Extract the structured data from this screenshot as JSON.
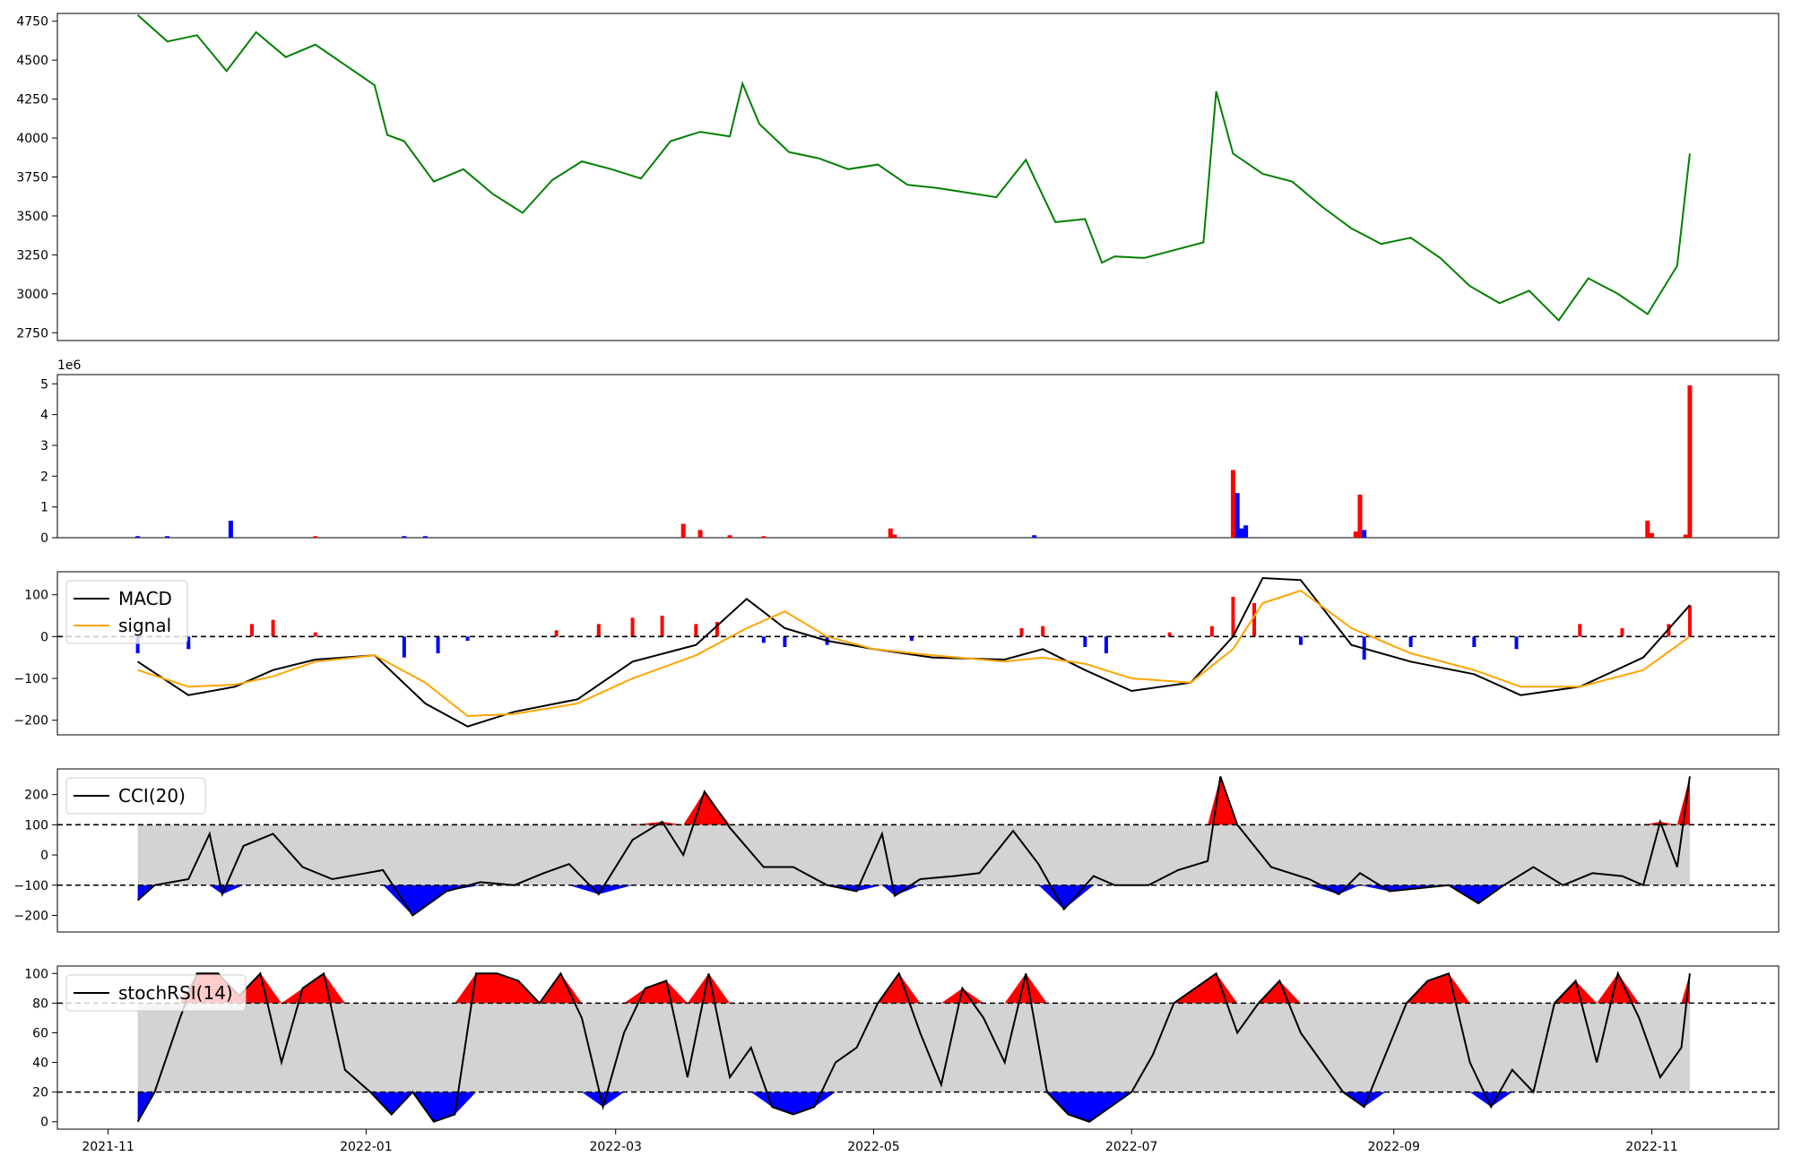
{
  "chart_data": [
    {
      "type": "line",
      "panel": "price",
      "ylim": [
        2700,
        4800
      ],
      "yticks": [
        "2750",
        "3000",
        "3250",
        "3500",
        "3750",
        "4000",
        "4250",
        "4500",
        "4750"
      ],
      "ytick_values": [
        2750,
        3000,
        3250,
        3500,
        3750,
        4000,
        4250,
        4500,
        4750
      ],
      "color": "#008000",
      "x": [
        "2021-11-08",
        "2021-11-15",
        "2021-11-22",
        "2021-11-29",
        "2021-12-06",
        "2021-12-13",
        "2021-12-20",
        "2021-12-27",
        "2022-01-03",
        "2022-01-06",
        "2022-01-10",
        "2022-01-17",
        "2022-01-24",
        "2022-01-31",
        "2022-02-07",
        "2022-02-14",
        "2022-02-21",
        "2022-02-28",
        "2022-03-07",
        "2022-03-14",
        "2022-03-21",
        "2022-03-28",
        "2022-03-31",
        "2022-04-04",
        "2022-04-11",
        "2022-04-18",
        "2022-04-25",
        "2022-05-02",
        "2022-05-09",
        "2022-05-16",
        "2022-05-23",
        "2022-05-30",
        "2022-06-06",
        "2022-06-13",
        "2022-06-20",
        "2022-06-24",
        "2022-06-27",
        "2022-07-04",
        "2022-07-11",
        "2022-07-18",
        "2022-07-21",
        "2022-07-25",
        "2022-08-01",
        "2022-08-08",
        "2022-08-15",
        "2022-08-22",
        "2022-08-29",
        "2022-09-05",
        "2022-09-12",
        "2022-09-19",
        "2022-09-26",
        "2022-10-03",
        "2022-10-10",
        "2022-10-17",
        "2022-10-24",
        "2022-10-31",
        "2022-11-07",
        "2022-11-10"
      ],
      "values": [
        4790,
        4620,
        4660,
        4430,
        4680,
        4520,
        4600,
        4470,
        4340,
        4020,
        3980,
        3720,
        3800,
        3640,
        3520,
        3730,
        3850,
        3800,
        3740,
        3980,
        4040,
        4010,
        4350,
        4090,
        3910,
        3870,
        3800,
        3830,
        3700,
        3680,
        3650,
        3620,
        3860,
        3460,
        3480,
        3200,
        3240,
        3230,
        3280,
        3330,
        4300,
        3900,
        3770,
        3720,
        3560,
        3420,
        3320,
        3360,
        3230,
        3050,
        2940,
        3020,
        2830,
        3100,
        3000,
        2870,
        3180,
        3900
      ]
    },
    {
      "type": "bar",
      "panel": "volume",
      "exponent_label": "1e6",
      "ylim": [
        0,
        5.3
      ],
      "yticks": [
        "0",
        "1",
        "2",
        "3",
        "4",
        "5"
      ],
      "ytick_values": [
        0,
        1,
        2,
        3,
        4,
        5
      ],
      "up_color": "#ff0000",
      "down_color": "#0000ff",
      "x": [
        "2021-11-08",
        "2021-11-15",
        "2021-11-30",
        "2021-12-20",
        "2022-01-10",
        "2022-01-15",
        "2022-03-17",
        "2022-03-21",
        "2022-03-28",
        "2022-04-05",
        "2022-05-05",
        "2022-05-06",
        "2022-06-08",
        "2022-07-25",
        "2022-07-26",
        "2022-07-27",
        "2022-07-28",
        "2022-08-23",
        "2022-08-24",
        "2022-08-25",
        "2022-10-31",
        "2022-11-01",
        "2022-11-09",
        "2022-11-10"
      ],
      "values": [
        0.05,
        0.05,
        0.55,
        0.05,
        0.05,
        0.05,
        0.45,
        0.25,
        0.08,
        0.05,
        0.3,
        0.1,
        0.08,
        2.2,
        1.45,
        0.3,
        0.4,
        0.2,
        1.4,
        0.25,
        0.55,
        0.15,
        0.1,
        4.95
      ],
      "direction": [
        "down",
        "down",
        "down",
        "up",
        "down",
        "down",
        "up",
        "up",
        "up",
        "up",
        "up",
        "up",
        "down",
        "up",
        "down",
        "down",
        "down",
        "up",
        "up",
        "down",
        "up",
        "up",
        "up",
        "up"
      ]
    },
    {
      "type": "line",
      "panel": "macd",
      "ylim": [
        -235,
        155
      ],
      "yticks": [
        "−200",
        "−100",
        "0",
        "100"
      ],
      "ytick_values": [
        -200,
        -100,
        0,
        100
      ],
      "legend": [
        "MACD",
        "signal"
      ],
      "x": [
        "2021-11-08",
        "2021-11-20",
        "2021-12-01",
        "2021-12-10",
        "2021-12-20",
        "2022-01-03",
        "2022-01-15",
        "2022-01-25",
        "2022-02-05",
        "2022-02-20",
        "2022-03-05",
        "2022-03-20",
        "2022-04-01",
        "2022-04-10",
        "2022-04-20",
        "2022-05-01",
        "2022-05-15",
        "2022-06-01",
        "2022-06-10",
        "2022-06-20",
        "2022-07-01",
        "2022-07-15",
        "2022-07-25",
        "2022-08-01",
        "2022-08-10",
        "2022-08-22",
        "2022-09-05",
        "2022-09-20",
        "2022-10-01",
        "2022-10-15",
        "2022-10-30",
        "2022-11-10"
      ],
      "series": [
        {
          "name": "MACD",
          "color": "#000000",
          "values": [
            -60,
            -140,
            -120,
            -80,
            -55,
            -45,
            -160,
            -215,
            -180,
            -150,
            -60,
            -20,
            90,
            20,
            -10,
            -30,
            -50,
            -55,
            -30,
            -80,
            -130,
            -110,
            0,
            140,
            135,
            -20,
            -60,
            -90,
            -140,
            -120,
            -50,
            75
          ]
        },
        {
          "name": "signal",
          "color": "#ffa500",
          "values": [
            -80,
            -120,
            -115,
            -95,
            -60,
            -45,
            -110,
            -190,
            -185,
            -160,
            -100,
            -45,
            20,
            60,
            0,
            -30,
            -45,
            -60,
            -50,
            -65,
            -100,
            -110,
            -30,
            80,
            110,
            20,
            -40,
            -80,
            -120,
            -120,
            -80,
            0
          ]
        }
      ],
      "histogram_x": [
        "2021-11-08",
        "2021-11-20",
        "2021-12-05",
        "2021-12-10",
        "2021-12-20",
        "2022-01-10",
        "2022-01-18",
        "2022-01-25",
        "2022-02-15",
        "2022-02-25",
        "2022-03-05",
        "2022-03-12",
        "2022-03-20",
        "2022-03-25",
        "2022-04-05",
        "2022-04-10",
        "2022-04-20",
        "2022-05-10",
        "2022-06-05",
        "2022-06-10",
        "2022-06-20",
        "2022-06-25",
        "2022-07-10",
        "2022-07-20",
        "2022-07-25",
        "2022-07-30",
        "2022-08-10",
        "2022-08-25",
        "2022-09-05",
        "2022-09-20",
        "2022-09-30",
        "2022-10-15",
        "2022-10-25",
        "2022-11-05",
        "2022-11-10"
      ],
      "histogram": [
        -40,
        -30,
        30,
        40,
        10,
        -50,
        -40,
        -10,
        15,
        30,
        45,
        50,
        30,
        35,
        -15,
        -25,
        -20,
        -10,
        20,
        25,
        -25,
        -40,
        10,
        25,
        95,
        80,
        -20,
        -55,
        -25,
        -25,
        -30,
        30,
        20,
        30,
        75
      ]
    },
    {
      "type": "line",
      "panel": "cci",
      "ylim": [
        -255,
        285
      ],
      "yticks": [
        "−200",
        "−100",
        "0",
        "100",
        "200"
      ],
      "ytick_values": [
        -200,
        -100,
        0,
        100,
        200
      ],
      "legend": [
        "CCI(20)"
      ],
      "bands": [
        -100,
        100
      ],
      "x": [
        "2021-11-08",
        "2021-11-12",
        "2021-11-20",
        "2021-11-25",
        "2021-11-28",
        "2021-12-03",
        "2021-12-10",
        "2021-12-17",
        "2021-12-24",
        "2022-01-01",
        "2022-01-05",
        "2022-01-12",
        "2022-01-20",
        "2022-01-28",
        "2022-02-05",
        "2022-02-12",
        "2022-02-18",
        "2022-02-25",
        "2022-03-05",
        "2022-03-12",
        "2022-03-17",
        "2022-03-22",
        "2022-03-28",
        "2022-04-05",
        "2022-04-12",
        "2022-04-20",
        "2022-04-27",
        "2022-05-03",
        "2022-05-06",
        "2022-05-12",
        "2022-05-20",
        "2022-05-26",
        "2022-06-03",
        "2022-06-09",
        "2022-06-15",
        "2022-06-22",
        "2022-06-27",
        "2022-07-05",
        "2022-07-12",
        "2022-07-19",
        "2022-07-22",
        "2022-07-26",
        "2022-08-03",
        "2022-08-12",
        "2022-08-19",
        "2022-08-24",
        "2022-08-31",
        "2022-09-07",
        "2022-09-14",
        "2022-09-21",
        "2022-09-27",
        "2022-10-04",
        "2022-10-11",
        "2022-10-18",
        "2022-10-25",
        "2022-10-30",
        "2022-11-03",
        "2022-11-07",
        "2022-11-10"
      ],
      "values": [
        -150,
        -100,
        -80,
        70,
        -130,
        30,
        70,
        -40,
        -80,
        -60,
        -50,
        -200,
        -120,
        -90,
        -100,
        -60,
        -30,
        -130,
        50,
        110,
        0,
        210,
        90,
        -40,
        -40,
        -100,
        -120,
        70,
        -135,
        -80,
        -70,
        -60,
        80,
        -30,
        -180,
        -70,
        -100,
        -100,
        -50,
        -20,
        260,
        100,
        -40,
        -80,
        -130,
        -60,
        -120,
        -110,
        -100,
        -160,
        -100,
        -40,
        -100,
        -60,
        -70,
        -100,
        110,
        -40,
        260
      ]
    },
    {
      "type": "line",
      "panel": "stochrsi",
      "ylim": [
        -5,
        105
      ],
      "yticks": [
        "0",
        "20",
        "40",
        "60",
        "80",
        "100"
      ],
      "ytick_values": [
        0,
        20,
        40,
        60,
        80,
        100
      ],
      "legend": [
        "stochRSI(14)"
      ],
      "bands": [
        20,
        80
      ],
      "x": [
        "2021-11-08",
        "2021-11-12",
        "2021-11-18",
        "2021-11-22",
        "2021-11-27",
        "2021-12-02",
        "2021-12-07",
        "2021-12-12",
        "2021-12-17",
        "2021-12-22",
        "2021-12-27",
        "2022-01-02",
        "2022-01-07",
        "2022-01-12",
        "2022-01-17",
        "2022-01-22",
        "2022-01-27",
        "2022-02-01",
        "2022-02-06",
        "2022-02-11",
        "2022-02-16",
        "2022-02-21",
        "2022-02-26",
        "2022-03-03",
        "2022-03-08",
        "2022-03-13",
        "2022-03-18",
        "2022-03-23",
        "2022-03-28",
        "2022-04-02",
        "2022-04-07",
        "2022-04-12",
        "2022-04-17",
        "2022-04-22",
        "2022-04-27",
        "2022-05-02",
        "2022-05-07",
        "2022-05-12",
        "2022-05-17",
        "2022-05-22",
        "2022-05-27",
        "2022-06-01",
        "2022-06-06",
        "2022-06-11",
        "2022-06-16",
        "2022-06-21",
        "2022-06-26",
        "2022-07-01",
        "2022-07-06",
        "2022-07-11",
        "2022-07-16",
        "2022-07-21",
        "2022-07-26",
        "2022-07-31",
        "2022-08-05",
        "2022-08-10",
        "2022-08-15",
        "2022-08-20",
        "2022-08-25",
        "2022-08-30",
        "2022-09-04",
        "2022-09-09",
        "2022-09-14",
        "2022-09-19",
        "2022-09-24",
        "2022-09-29",
        "2022-10-04",
        "2022-10-09",
        "2022-10-14",
        "2022-10-19",
        "2022-10-24",
        "2022-10-29",
        "2022-11-03",
        "2022-11-08",
        "2022-11-10"
      ],
      "values": [
        0,
        20,
        70,
        100,
        100,
        85,
        100,
        40,
        90,
        100,
        35,
        20,
        5,
        20,
        0,
        5,
        100,
        100,
        95,
        80,
        100,
        70,
        10,
        60,
        90,
        95,
        30,
        100,
        30,
        50,
        10,
        5,
        10,
        40,
        50,
        80,
        100,
        60,
        25,
        90,
        70,
        40,
        100,
        20,
        5,
        0,
        10,
        20,
        45,
        80,
        90,
        100,
        60,
        80,
        95,
        60,
        40,
        20,
        10,
        45,
        80,
        95,
        100,
        40,
        10,
        35,
        20,
        80,
        95,
        40,
        100,
        70,
        30,
        50,
        100
      ]
    }
  ],
  "x_axis": {
    "ticks": [
      "2021-11",
      "2022-01",
      "2022-03",
      "2022-05",
      "2022-07",
      "2022-09",
      "2022-11"
    ]
  }
}
